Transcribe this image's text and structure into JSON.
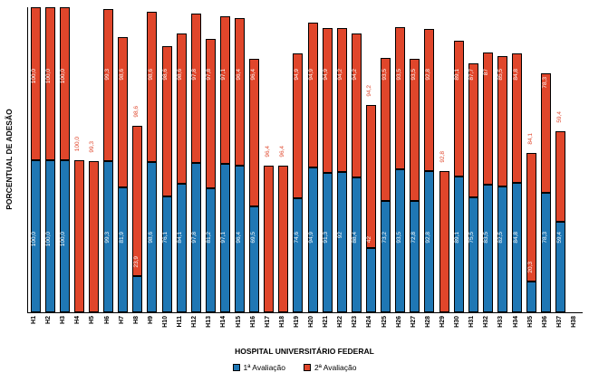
{
  "chart_data": {
    "type": "bar",
    "subtype": "stacked",
    "title": "",
    "xlabel": "HOSPITAL UNIVERSITÁRIO FEDERAL",
    "ylabel": "PORCENTUAL DE ADESÃO",
    "ylim": [
      0,
      200
    ],
    "y_axis_tick_labels_visible": false,
    "grid": false,
    "legend_position": "bottom",
    "legend": [
      {
        "label": "1ª Avaliação",
        "color": "#1f77b4"
      },
      {
        "label": "2ª Avaliação",
        "color": "#e0462b"
      }
    ],
    "categories": [
      "H1",
      "H2",
      "H3",
      "H4",
      "H5",
      "H6",
      "H7",
      "H8",
      "H9",
      "H10",
      "H11",
      "H12",
      "H13",
      "H14",
      "H15",
      "H16",
      "H17",
      "H18",
      "H19",
      "H20",
      "H21",
      "H22",
      "H23",
      "H24",
      "H25",
      "H26",
      "H27",
      "H28",
      "H29",
      "H30",
      "H31",
      "H32",
      "H33",
      "H34",
      "H35",
      "H36",
      "H37",
      "H38"
    ],
    "series": [
      {
        "name": "1ª Avaliação",
        "values": [
          "100,0",
          "100,0",
          "100,0",
          "",
          "",
          "99,3",
          "81,9",
          "23,9",
          "98,6",
          "76,1",
          "84,1",
          "97,8",
          "81,2",
          "97,1",
          "96,4",
          "69,5",
          "",
          "",
          "74,6",
          "94,9",
          "91,3",
          "92",
          "88,4",
          "42",
          "73,2",
          "93,5",
          "72,8",
          "92,8",
          "",
          "89,1",
          "75,5",
          "83,5",
          "82,5",
          "84,8",
          "20,3",
          "78,3",
          "59,4",
          ""
        ]
      },
      {
        "name": "2ª Avaliação",
        "values": [
          "100,0",
          "100,0",
          "100,0",
          "100,0",
          "99,3",
          "99,3",
          "98,6",
          "98,6",
          "98,6",
          "98,6",
          "98,6",
          "97,8",
          "97,8",
          "97,1",
          "96,4",
          "96,4",
          "96,4",
          "96,4",
          "94,9",
          "94,9",
          "94,9",
          "94,2",
          "94,2",
          "94,2",
          "93,5",
          "93,5",
          "93,5",
          "92,8",
          "92,8",
          "89,1",
          "87,7",
          "87",
          "85,5",
          "84,8",
          "84,1",
          "78,3",
          "59,4",
          ""
        ]
      }
    ]
  }
}
